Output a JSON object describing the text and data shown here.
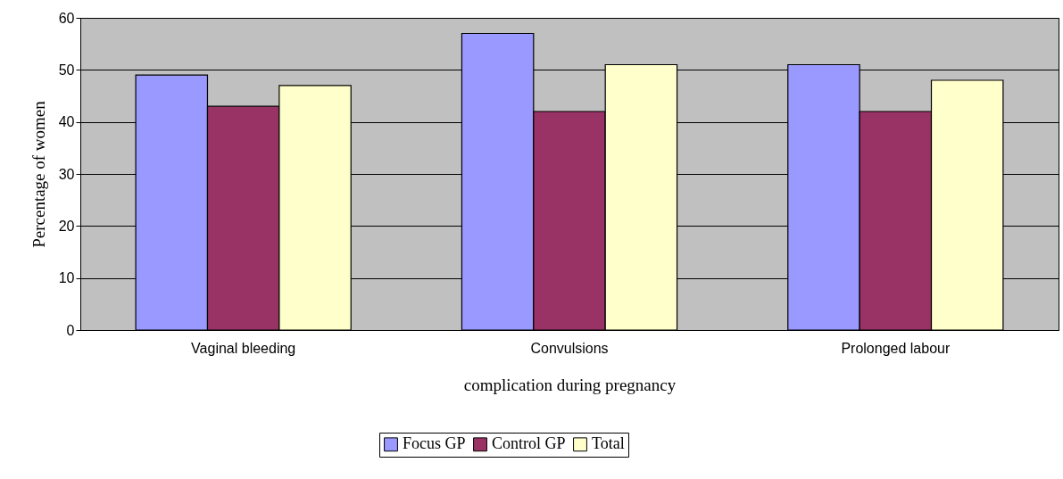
{
  "chart_data": {
    "type": "bar",
    "xlabel": "complication during pregnancy",
    "ylabel": "Percentage of women",
    "categories": [
      "Vaginal bleeding",
      "Convulsions",
      "Prolonged labour"
    ],
    "series": [
      {
        "name": "Focus GP",
        "color": "#9999ff",
        "values": [
          49,
          57,
          51
        ]
      },
      {
        "name": "Control GP",
        "color": "#993366",
        "values": [
          43,
          42,
          42
        ]
      },
      {
        "name": "Total",
        "color": "#ffffcc",
        "values": [
          47,
          51,
          48
        ]
      }
    ],
    "ylim": [
      0,
      60
    ],
    "yticks": [
      0,
      10,
      20,
      30,
      40,
      50,
      60
    ],
    "grid": "y",
    "legend": "bottom"
  }
}
